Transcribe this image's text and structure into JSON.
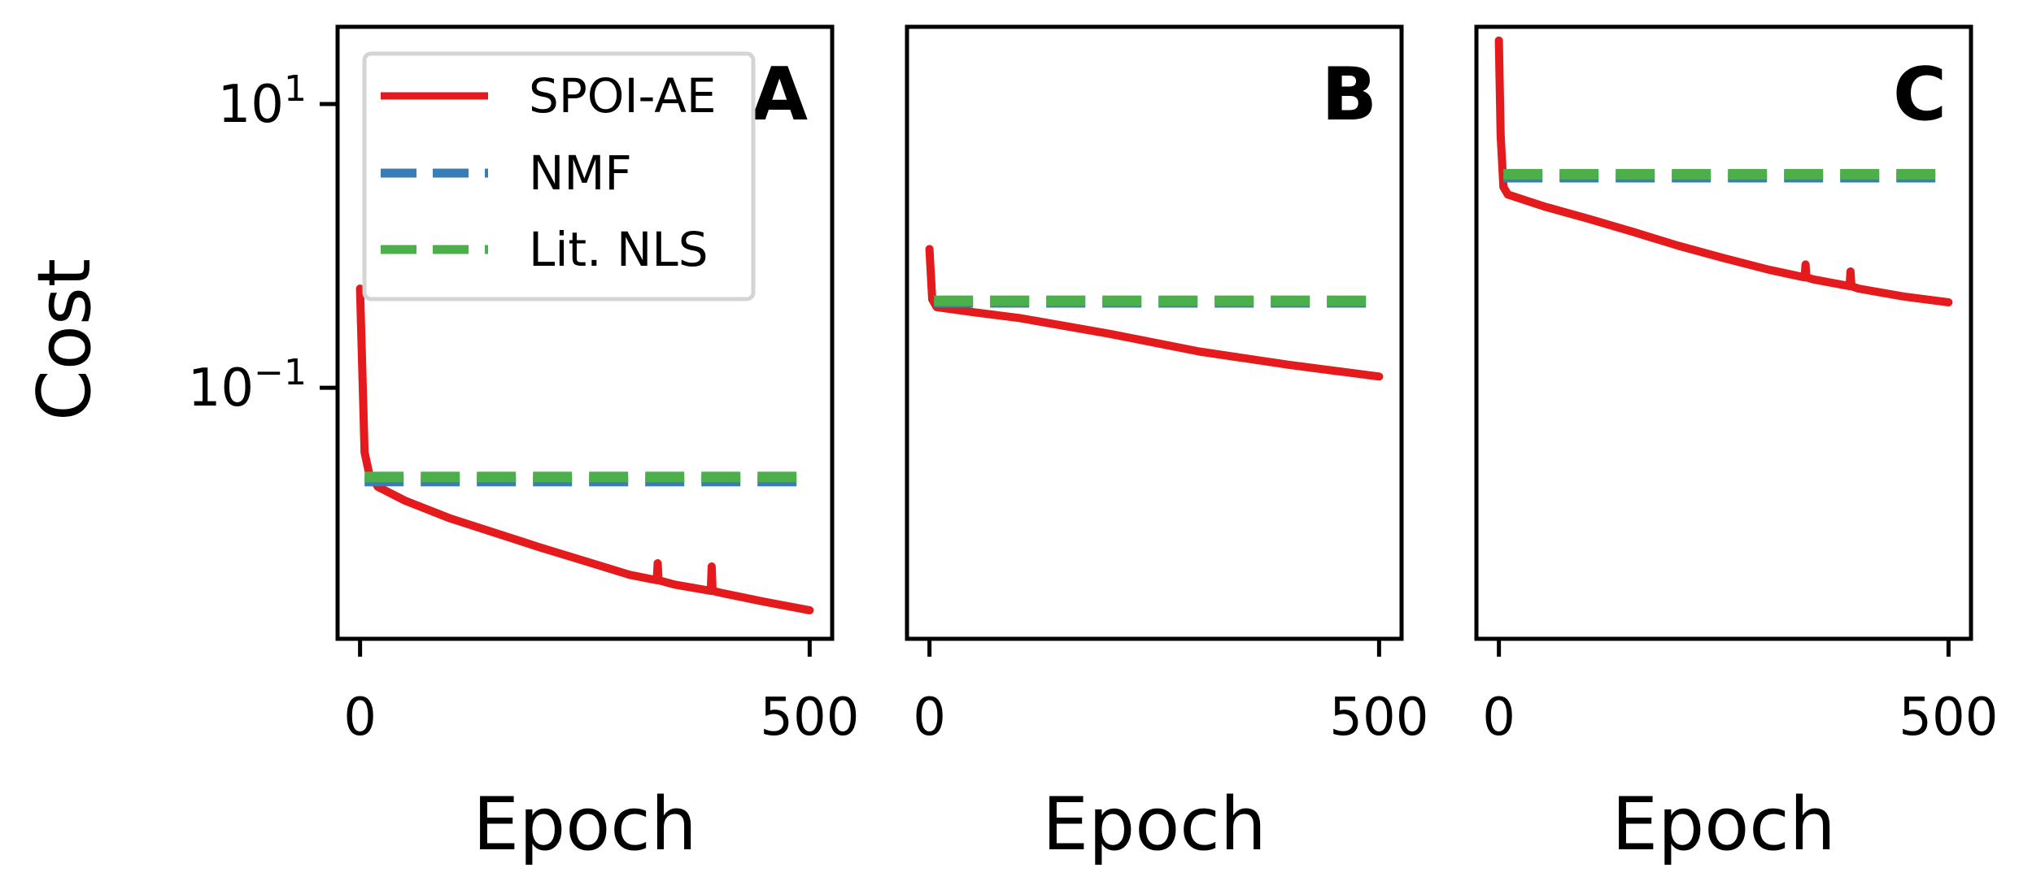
{
  "colors": {
    "spoi_ae": "#e41a1c",
    "nmf": "#377eb8",
    "lit_nls": "#4daf4a"
  },
  "chart_data": [
    {
      "type": "line",
      "panel_label": "A",
      "xlabel": "Epoch",
      "ylabel": "Cost",
      "yscale": "log",
      "xlim": [
        -25,
        525
      ],
      "ylim": [
        0.0017,
        35
      ],
      "x_ticks": [
        0,
        500
      ],
      "x_tick_labels": [
        "0",
        "500"
      ],
      "y_ticks": [
        10,
        0.1
      ],
      "y_tick_labels": [
        {
          "base": "10",
          "exp": "1"
        },
        {
          "base": "10",
          "exp": "−1"
        }
      ],
      "legend": {
        "position": "top-left",
        "entries": [
          "SPOI-AE",
          "NMF",
          "Lit. NLS"
        ]
      },
      "series": [
        {
          "name": "SPOI-AE",
          "style": "solid",
          "color_key": "spoi_ae",
          "x": [
            0,
            5,
            10,
            20,
            50,
            100,
            150,
            200,
            250,
            300,
            330,
            331,
            332,
            350,
            390,
            391,
            392,
            400,
            450,
            500
          ],
          "y": [
            0.5,
            0.035,
            0.025,
            0.02,
            0.016,
            0.012,
            0.0095,
            0.0075,
            0.006,
            0.0048,
            0.0044,
            0.0058,
            0.0044,
            0.0041,
            0.0037,
            0.0055,
            0.0037,
            0.0036,
            0.0031,
            0.0027
          ]
        },
        {
          "name": "NMF",
          "style": "dashed",
          "color_key": "nmf",
          "x": [
            5,
            500
          ],
          "y": [
            0.022,
            0.022
          ]
        },
        {
          "name": "Lit. NLS",
          "style": "dashed",
          "color_key": "lit_nls",
          "x": [
            5,
            500
          ],
          "y": [
            0.0235,
            0.0235
          ]
        }
      ]
    },
    {
      "type": "line",
      "panel_label": "B",
      "xlabel": "Epoch",
      "yscale": "log",
      "xlim": [
        -25,
        525
      ],
      "ylim": [
        0.0017,
        35
      ],
      "x_ticks": [
        0,
        500
      ],
      "x_tick_labels": [
        "0",
        "500"
      ],
      "series": [
        {
          "name": "SPOI-AE",
          "style": "solid",
          "color_key": "spoi_ae",
          "x": [
            0,
            3,
            8,
            50,
            100,
            200,
            300,
            400,
            500
          ],
          "y": [
            0.95,
            0.42,
            0.37,
            0.34,
            0.31,
            0.24,
            0.18,
            0.145,
            0.12
          ]
        },
        {
          "name": "NMF",
          "style": "dashed",
          "color_key": "nmf",
          "x": [
            5,
            500
          ],
          "y": [
            0.4,
            0.4
          ]
        },
        {
          "name": "Lit. NLS",
          "style": "dashed",
          "color_key": "lit_nls",
          "x": [
            5,
            500
          ],
          "y": [
            0.41,
            0.41
          ]
        }
      ]
    },
    {
      "type": "line",
      "panel_label": "C",
      "xlabel": "Epoch",
      "yscale": "log",
      "xlim": [
        -25,
        525
      ],
      "ylim": [
        0.0017,
        35
      ],
      "x_ticks": [
        0,
        500
      ],
      "x_tick_labels": [
        "0",
        "500"
      ],
      "series": [
        {
          "name": "SPOI-AE",
          "style": "solid",
          "color_key": "spoi_ae",
          "x": [
            0,
            2,
            5,
            10,
            50,
            100,
            150,
            200,
            250,
            300,
            340,
            341,
            342,
            350,
            390,
            391,
            392,
            400,
            450,
            500
          ],
          "y": [
            28,
            6,
            2.6,
            2.3,
            1.9,
            1.55,
            1.25,
            1.0,
            0.82,
            0.68,
            0.6,
            0.74,
            0.6,
            0.58,
            0.52,
            0.66,
            0.52,
            0.5,
            0.44,
            0.4
          ]
        },
        {
          "name": "NMF",
          "style": "dashed",
          "color_key": "nmf",
          "x": [
            5,
            500
          ],
          "y": [
            3.05,
            3.05
          ]
        },
        {
          "name": "Lit. NLS",
          "style": "dashed",
          "color_key": "lit_nls",
          "x": [
            5,
            500
          ],
          "y": [
            3.2,
            3.2
          ]
        }
      ]
    }
  ]
}
